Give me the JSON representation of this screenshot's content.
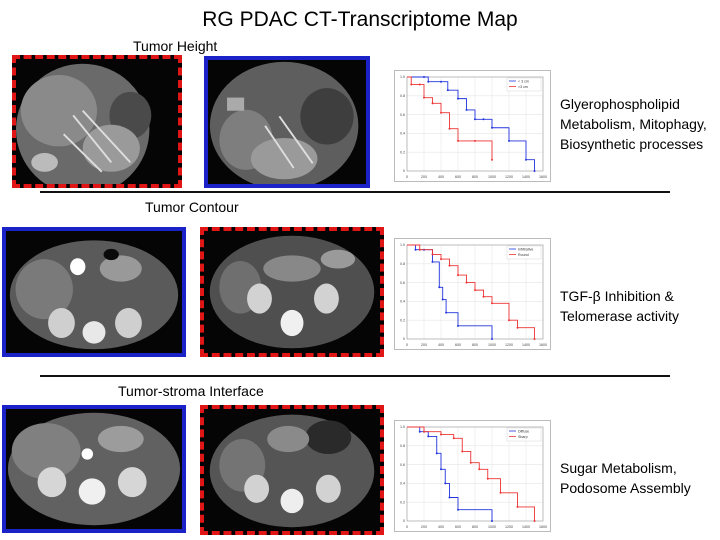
{
  "title": "RG PDAC CT-Transcriptome Map",
  "rows": [
    {
      "label": "Tumor Height",
      "descriptions": [
        "Glyerophospholipid",
        "Metabolism, Mitophagy,",
        "Biosynthetic processes"
      ],
      "legend": [
        "< 3 cm",
        ">3 cm"
      ],
      "x_ticks": [
        "0",
        "200",
        "400",
        "600",
        "800",
        "1000",
        "1200",
        "1400",
        "1600"
      ],
      "y_ticks": [
        "0",
        "0.2",
        "0.4",
        "0.6",
        "0.8",
        "1.0"
      ]
    },
    {
      "label": "Tumor Contour",
      "descriptions": [
        "TGF-β Inhibition &",
        "Telomerase activity"
      ],
      "legend": [
        "Infiltrative",
        "Round"
      ],
      "x_ticks": [
        "0",
        "200",
        "400",
        "600",
        "800",
        "1000",
        "1200",
        "1400",
        "1600"
      ],
      "y_ticks": [
        "0",
        "0.2",
        "0.4",
        "0.6",
        "0.8",
        "1.0"
      ]
    },
    {
      "label": "Tumor-stroma Interface",
      "descriptions": [
        "Sugar Metabolism,",
        "Podosome Assembly"
      ],
      "legend": [
        "Diffuse",
        "Sharp"
      ],
      "x_ticks": [
        "0",
        "200",
        "400",
        "600",
        "800",
        "1000",
        "1200",
        "1400",
        "1600"
      ],
      "y_ticks": [
        "0",
        "0.2",
        "0.4",
        "0.6",
        "0.8",
        "1.0"
      ]
    }
  ],
  "colors": {
    "red_frame": "#e01515",
    "blue_frame": "#1a22c8",
    "km_blue": "#2233dd",
    "km_red": "#ee3333"
  },
  "chart_data": [
    {
      "type": "line",
      "xlim": [
        0,
        1600
      ],
      "ylim": [
        0,
        1
      ],
      "series": [
        {
          "name": "< 3 cm",
          "color": "#2233dd",
          "x": [
            0,
            200,
            250,
            400,
            480,
            600,
            700,
            800,
            900,
            1000,
            1200,
            1400,
            1500
          ],
          "y": [
            1.0,
            1.0,
            0.95,
            0.95,
            0.86,
            0.77,
            0.65,
            0.55,
            0.55,
            0.46,
            0.32,
            0.12,
            0.0
          ]
        },
        {
          "name": ">3 cm",
          "color": "#ee3333",
          "x": [
            0,
            50,
            150,
            200,
            300,
            400,
            500,
            600,
            800,
            1000
          ],
          "y": [
            1.0,
            0.92,
            0.92,
            0.78,
            0.72,
            0.62,
            0.45,
            0.32,
            0.32,
            0.12
          ]
        }
      ]
    },
    {
      "type": "line",
      "xlim": [
        0,
        1600
      ],
      "ylim": [
        0,
        1
      ],
      "series": [
        {
          "name": "Infiltrative",
          "color": "#2233dd",
          "x": [
            0,
            100,
            200,
            300,
            380,
            420,
            460,
            600,
            1000
          ],
          "y": [
            1.0,
            0.95,
            0.95,
            0.82,
            0.55,
            0.42,
            0.28,
            0.14,
            0.0
          ]
        },
        {
          "name": "Round",
          "color": "#ee3333",
          "x": [
            0,
            150,
            300,
            400,
            500,
            600,
            700,
            800,
            900,
            1000,
            1200,
            1300,
            1500
          ],
          "y": [
            1.0,
            0.95,
            0.9,
            0.85,
            0.78,
            0.68,
            0.6,
            0.52,
            0.45,
            0.38,
            0.2,
            0.12,
            0.0
          ]
        }
      ]
    },
    {
      "type": "line",
      "xlim": [
        0,
        1600
      ],
      "ylim": [
        0,
        1
      ],
      "series": [
        {
          "name": "Diffuse",
          "color": "#2233dd",
          "x": [
            0,
            150,
            250,
            350,
            400,
            450,
            500,
            600,
            1000
          ],
          "y": [
            1.0,
            0.95,
            0.9,
            0.72,
            0.55,
            0.4,
            0.25,
            0.12,
            0.0
          ]
        },
        {
          "name": "Sharp",
          "color": "#ee3333",
          "x": [
            0,
            200,
            400,
            550,
            650,
            750,
            850,
            950,
            1100,
            1300,
            1500
          ],
          "y": [
            1.0,
            0.95,
            0.92,
            0.88,
            0.74,
            0.62,
            0.55,
            0.45,
            0.3,
            0.15,
            0.0
          ]
        }
      ]
    }
  ]
}
